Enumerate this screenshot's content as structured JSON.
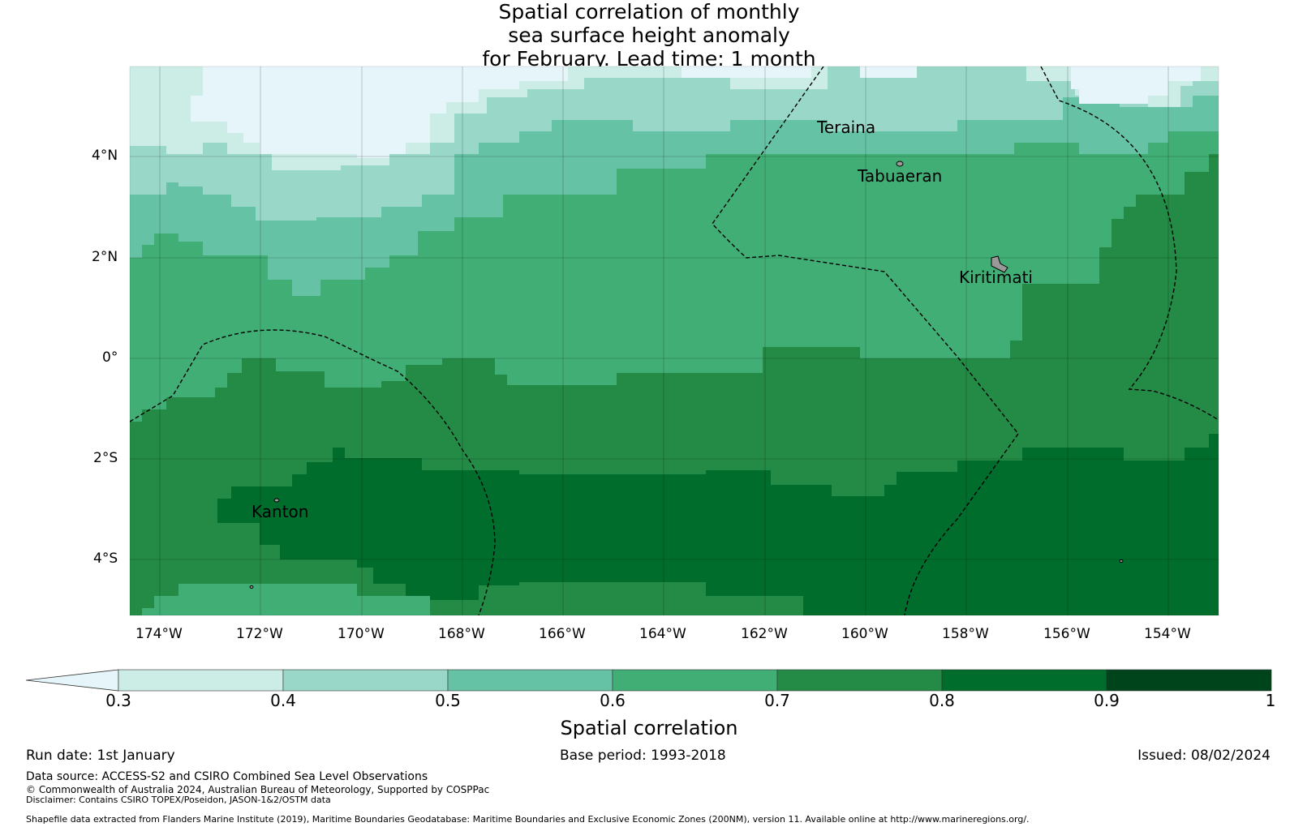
{
  "title": {
    "line1": "Spatial correlation of monthly",
    "line2": "sea surface height anomaly",
    "line3": "for February. Lead time: 1 month"
  },
  "axes": {
    "x_ticks": [
      "174°W",
      "172°W",
      "170°W",
      "168°W",
      "166°W",
      "164°W",
      "162°W",
      "160°W",
      "158°W",
      "156°W",
      "154°W"
    ],
    "y_ticks": [
      "4°N",
      "2°N",
      "0°",
      "2°S",
      "4°S"
    ]
  },
  "places": {
    "teraina": "Teraina",
    "tabuaeran": "Tabuaeran",
    "kiritimati": "Kiritimati",
    "kanton": "Kanton"
  },
  "colorbar": {
    "label": "Spatial correlation",
    "ticks": [
      "0.3",
      "0.4",
      "0.5",
      "0.6",
      "0.7",
      "0.8",
      "0.9",
      "1"
    ],
    "colors": [
      "#e5f5f9",
      "#ccece6",
      "#99d8c9",
      "#66c2a4",
      "#41ae76",
      "#238b45",
      "#006d2c",
      "#00441b"
    ]
  },
  "footer": {
    "run_date": "Run date: 1st January",
    "base_period": "Base period: 1993-2018",
    "issued": "Issued: 08/02/2024",
    "data_source": "Data source: ACCESS-S2 and CSIRO Combined Sea Level Observations",
    "copyright": "© Commonwealth of Australia 2024, Australian Bureau of Meteorology, Supported by COSPPac",
    "disclaimer": "Disclaimer: Contains CSIRO TOPEX/Poseidon, JASON-1&2/OSTM data",
    "shapefile": "Shapefile data extracted from Flanders Marine Institute (2019), Maritime Boundaries Geodatabase: Maritime Boundaries and Exclusive Economic Zones (200NM), version 11. Available online at http://www.marineregions.org/."
  }
}
